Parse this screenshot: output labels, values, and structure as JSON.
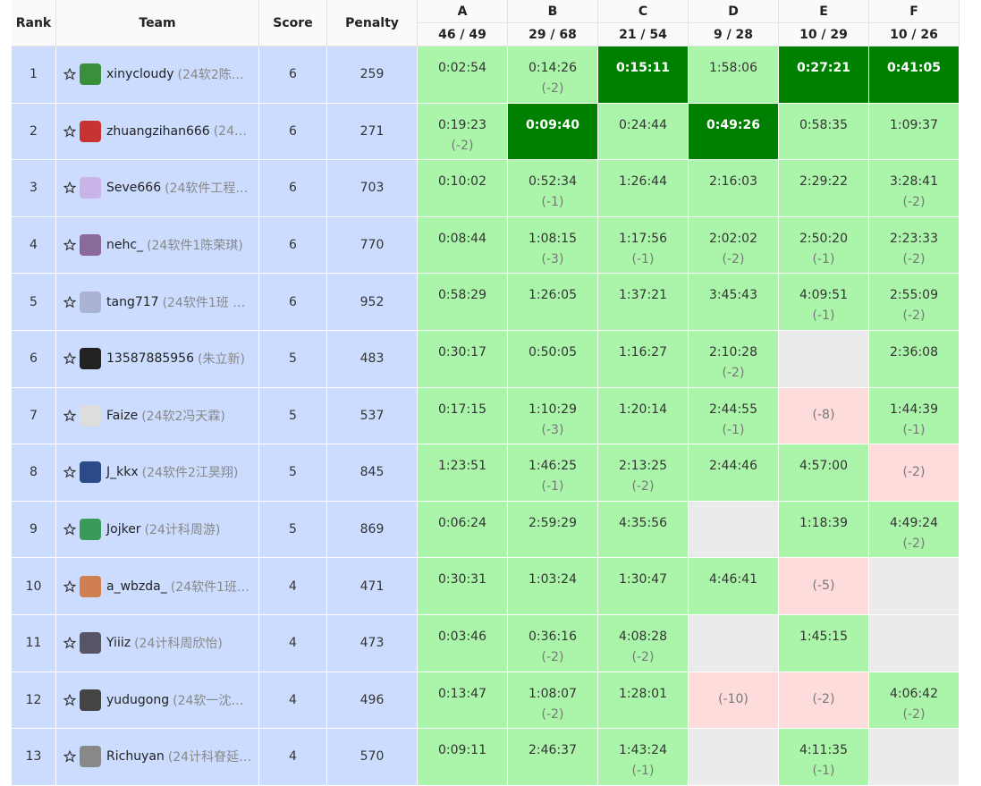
{
  "header": {
    "rank": "Rank",
    "team": "Team",
    "score": "Score",
    "penalty": "Penalty"
  },
  "problems": [
    {
      "letter": "A",
      "solved": "46 / 49"
    },
    {
      "letter": "B",
      "solved": "29 / 68"
    },
    {
      "letter": "C",
      "solved": "21 / 54"
    },
    {
      "letter": "D",
      "solved": "9 / 28"
    },
    {
      "letter": "E",
      "solved": "10 / 29"
    },
    {
      "letter": "F",
      "solved": "10 / 26"
    }
  ],
  "rows": [
    {
      "rank": 1,
      "name": "xinycloudy",
      "school": "(24软2陈…",
      "score": 6,
      "penalty": 259,
      "cells": [
        {
          "time": "0:02:54",
          "color": "#abf5ab"
        },
        {
          "time": "0:14:26",
          "tries": "(-2)",
          "color": "#abf5ab"
        },
        {
          "time": "0:15:11",
          "color": "#008000"
        },
        {
          "time": "1:58:06",
          "color": "#abf5ab"
        },
        {
          "time": "0:27:21",
          "color": "#008000"
        },
        {
          "time": "0:41:05",
          "color": "#008000"
        }
      ]
    },
    {
      "rank": 2,
      "name": "zhuangzihan666",
      "school": "(24…",
      "score": 6,
      "penalty": 271,
      "cells": [
        {
          "time": "0:19:23",
          "tries": "(-2)",
          "color": "#abf5ab"
        },
        {
          "time": "0:09:40",
          "color": "#008000"
        },
        {
          "time": "0:24:44",
          "color": "#abf5ab"
        },
        {
          "time": "0:49:26",
          "color": "#008000"
        },
        {
          "time": "0:58:35",
          "color": "#abf5ab"
        },
        {
          "time": "1:09:37",
          "color": "#abf5ab"
        }
      ]
    },
    {
      "rank": 3,
      "name": "Seve666",
      "school": "(24软件工程…",
      "score": 6,
      "penalty": 703,
      "cells": [
        {
          "time": "0:10:02",
          "color": "#abf5ab"
        },
        {
          "time": "0:52:34",
          "tries": "(-1)",
          "color": "#abf5ab"
        },
        {
          "time": "1:26:44",
          "color": "#abf5ab"
        },
        {
          "time": "2:16:03",
          "color": "#abf5ab"
        },
        {
          "time": "2:29:22",
          "color": "#abf5ab"
        },
        {
          "time": "3:28:41",
          "tries": "(-2)",
          "color": "#abf5ab"
        }
      ]
    },
    {
      "rank": 4,
      "name": "nehc_",
      "school": "(24软件1陈荣琪)",
      "score": 6,
      "penalty": 770,
      "cells": [
        {
          "time": "0:08:44",
          "color": "#abf5ab"
        },
        {
          "time": "1:08:15",
          "tries": "(-3)",
          "color": "#abf5ab"
        },
        {
          "time": "1:17:56",
          "tries": "(-1)",
          "color": "#abf5ab"
        },
        {
          "time": "2:02:02",
          "tries": "(-2)",
          "color": "#abf5ab"
        },
        {
          "time": "2:50:20",
          "tries": "(-1)",
          "color": "#abf5ab"
        },
        {
          "time": "2:23:33",
          "tries": "(-2)",
          "color": "#abf5ab"
        }
      ]
    },
    {
      "rank": 5,
      "name": "tang717",
      "school": "(24软件1班 …",
      "score": 6,
      "penalty": 952,
      "cells": [
        {
          "time": "0:58:29",
          "color": "#abf5ab"
        },
        {
          "time": "1:26:05",
          "color": "#abf5ab"
        },
        {
          "time": "1:37:21",
          "color": "#abf5ab"
        },
        {
          "time": "3:45:43",
          "color": "#abf5ab"
        },
        {
          "time": "4:09:51",
          "tries": "(-1)",
          "color": "#abf5ab"
        },
        {
          "time": "2:55:09",
          "tries": "(-2)",
          "color": "#abf5ab"
        }
      ]
    },
    {
      "rank": 6,
      "name": "13587885956",
      "school": "(朱立新)",
      "score": 5,
      "penalty": 483,
      "cells": [
        {
          "time": "0:30:17",
          "color": "#abf5ab"
        },
        {
          "time": "0:50:05",
          "color": "#abf5ab"
        },
        {
          "time": "1:16:27",
          "color": "#abf5ab"
        },
        {
          "time": "2:10:28",
          "tries": "(-2)",
          "color": "#abf5ab"
        },
        {
          "color": "#ebebeb"
        },
        {
          "time": "2:36:08",
          "color": "#abf5ab"
        }
      ]
    },
    {
      "rank": 7,
      "name": "Faize",
      "school": "(24软2冯天霖)",
      "score": 5,
      "penalty": 537,
      "cells": [
        {
          "time": "0:17:15",
          "color": "#abf5ab"
        },
        {
          "time": "1:10:29",
          "tries": "(-3)",
          "color": "#abf5ab"
        },
        {
          "time": "1:20:14",
          "color": "#abf5ab"
        },
        {
          "time": "2:44:55",
          "tries": "(-1)",
          "color": "#abf5ab"
        },
        {
          "tries": "(-8)",
          "color": "#ffdcdc"
        },
        {
          "time": "1:44:39",
          "tries": "(-1)",
          "color": "#abf5ab"
        }
      ]
    },
    {
      "rank": 8,
      "name": "J_kkx",
      "school": "(24软件2江昊翔)",
      "score": 5,
      "penalty": 845,
      "cells": [
        {
          "time": "1:23:51",
          "color": "#abf5ab"
        },
        {
          "time": "1:46:25",
          "tries": "(-1)",
          "color": "#abf5ab"
        },
        {
          "time": "2:13:25",
          "tries": "(-2)",
          "color": "#abf5ab"
        },
        {
          "time": "2:44:46",
          "color": "#abf5ab"
        },
        {
          "time": "4:57:00",
          "color": "#abf5ab"
        },
        {
          "tries": "(-2)",
          "color": "#ffdcdc"
        }
      ]
    },
    {
      "rank": 9,
      "name": "Jojker",
      "school": "(24计科周游)",
      "score": 5,
      "penalty": 869,
      "cells": [
        {
          "time": "0:06:24",
          "color": "#abf5ab"
        },
        {
          "time": "2:59:29",
          "color": "#abf5ab"
        },
        {
          "time": "4:35:56",
          "color": "#abf5ab"
        },
        {
          "color": "#ebebeb"
        },
        {
          "time": "1:18:39",
          "color": "#abf5ab"
        },
        {
          "time": "4:49:24",
          "tries": "(-2)",
          "color": "#abf5ab"
        }
      ]
    },
    {
      "rank": 10,
      "name": "a_wbzda_",
      "school": "(24软件1班…",
      "score": 4,
      "penalty": 471,
      "cells": [
        {
          "time": "0:30:31",
          "color": "#abf5ab"
        },
        {
          "time": "1:03:24",
          "color": "#abf5ab"
        },
        {
          "time": "1:30:47",
          "color": "#abf5ab"
        },
        {
          "time": "4:46:41",
          "color": "#abf5ab"
        },
        {
          "tries": "(-5)",
          "color": "#ffdcdc"
        },
        {
          "color": "#ebebeb"
        }
      ]
    },
    {
      "rank": 11,
      "name": "Yiiiz",
      "school": "(24计科周欣怡)",
      "score": 4,
      "penalty": 473,
      "cells": [
        {
          "time": "0:03:46",
          "color": "#abf5ab"
        },
        {
          "time": "0:36:16",
          "tries": "(-2)",
          "color": "#abf5ab"
        },
        {
          "time": "4:08:28",
          "tries": "(-2)",
          "color": "#abf5ab"
        },
        {
          "color": "#ebebeb"
        },
        {
          "time": "1:45:15",
          "color": "#abf5ab"
        },
        {
          "color": "#ebebeb"
        }
      ]
    },
    {
      "rank": 12,
      "name": "yudugong",
      "school": "(24软一沈…",
      "score": 4,
      "penalty": 496,
      "cells": [
        {
          "time": "0:13:47",
          "color": "#abf5ab"
        },
        {
          "time": "1:08:07",
          "tries": "(-2)",
          "color": "#abf5ab"
        },
        {
          "time": "1:28:01",
          "color": "#abf5ab"
        },
        {
          "tries": "(-10)",
          "color": "#ffdcdc"
        },
        {
          "tries": "(-2)",
          "color": "#ffdcdc"
        },
        {
          "time": "4:06:42",
          "tries": "(-2)",
          "color": "#abf5ab"
        }
      ]
    },
    {
      "rank": 13,
      "name": "Richuyan",
      "school": "(24计科眘延…",
      "score": 4,
      "penalty": 570,
      "cells": [
        {
          "time": "0:09:11",
          "color": "#abf5ab"
        },
        {
          "time": "2:46:37",
          "color": "#abf5ab"
        },
        {
          "time": "1:43:24",
          "tries": "(-1)",
          "color": "#abf5ab"
        },
        {
          "color": "#ebebeb"
        },
        {
          "time": "4:11:35",
          "tries": "(-1)",
          "color": "#abf5ab"
        },
        {
          "color": "#ebebeb"
        }
      ]
    }
  ]
}
